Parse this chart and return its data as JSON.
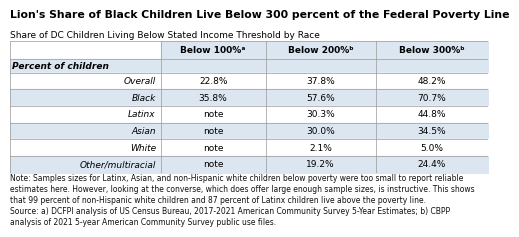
{
  "title": "Lion's Share of Black Children Live Below 300 percent of the Federal Poverty Line",
  "subtitle": "Share of DC Children Living Below Stated Income Threshold by Race",
  "col_headers": [
    "Below 100%ᵃ",
    "Below 200%ᵇ",
    "Below 300%ᵇ"
  ],
  "section_label": "Percent of children",
  "rows": [
    {
      "label": "Overall",
      "vals": [
        "22.8%",
        "37.8%",
        "48.2%"
      ]
    },
    {
      "label": "Black",
      "vals": [
        "35.8%",
        "57.6%",
        "70.7%"
      ]
    },
    {
      "label": "Latinx",
      "vals": [
        "note",
        "30.3%",
        "44.8%"
      ]
    },
    {
      "label": "Asian",
      "vals": [
        "note",
        "30.0%",
        "34.5%"
      ]
    },
    {
      "label": "White",
      "vals": [
        "note",
        "2.1%",
        "5.0%"
      ]
    },
    {
      "label": "Other/multiracial",
      "vals": [
        "note",
        "19.2%",
        "24.4%"
      ]
    }
  ],
  "note_text": "Note: Samples sizes for Latinx, Asian, and non-Hispanic white children below poverty were too small to report reliable\nestimates here. However, looking at the converse, which does offer large enough sample sizes, is instructive. This shows\nthat 99 percent of non-Hispanic white children and 87 percent of Latinx children live above the poverty line.\nSource: a) DCFPI analysis of US Census Bureau, 2017-2021 American Community Survey 5-Year Estimates; b) CBPP\nanalysis of 2021 5-year American Community Survey public use files.",
  "header_bg": "#dce6f1",
  "alt_row_bg": "#dce6f1",
  "white_row_bg": "#ffffff",
  "section_row_bg": "#dce6f1",
  "border_color": "#aaaaaa",
  "title_fontsize": 7.8,
  "subtitle_fontsize": 6.5,
  "table_fontsize": 6.5,
  "note_fontsize": 5.5,
  "row_colors": [
    "#ffffff",
    "#dce6f1",
    "#ffffff",
    "#dce6f1",
    "#ffffff",
    "#dce6f1"
  ]
}
